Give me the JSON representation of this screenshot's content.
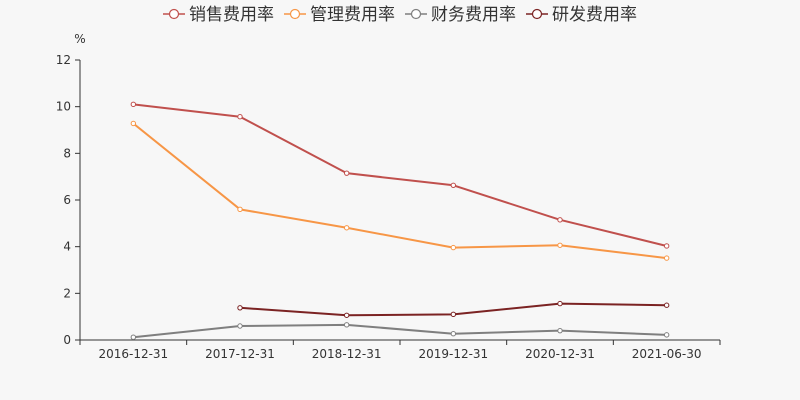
{
  "chart_data": {
    "type": "line",
    "title": "",
    "xlabel": "",
    "ylabel": "%",
    "ylim": [
      0,
      12
    ],
    "yticks": [
      "0",
      "2",
      "4",
      "6",
      "8",
      "10",
      "12"
    ],
    "categories": [
      "2016-12-31",
      "2017-12-31",
      "2018-12-31",
      "2019-12-31",
      "2020-12-31",
      "2021-06-30"
    ],
    "legend_position": "top-center",
    "grid": false,
    "series": [
      {
        "name": "销售费用率",
        "color": "#c0504d",
        "values": [
          10.1,
          9.57,
          7.15,
          6.63,
          5.15,
          4.03
        ]
      },
      {
        "name": "管理费用率",
        "color": "#f79646",
        "values": [
          9.28,
          5.6,
          4.81,
          3.96,
          4.06,
          3.51
        ]
      },
      {
        "name": "财务费用率",
        "color": "#7f7f7f",
        "values": [
          0.12,
          0.6,
          0.65,
          0.27,
          0.4,
          0.22
        ]
      },
      {
        "name": "研发费用率",
        "color": "#7b2323",
        "values": [
          null,
          1.38,
          1.06,
          1.1,
          1.56,
          1.49
        ]
      }
    ]
  }
}
